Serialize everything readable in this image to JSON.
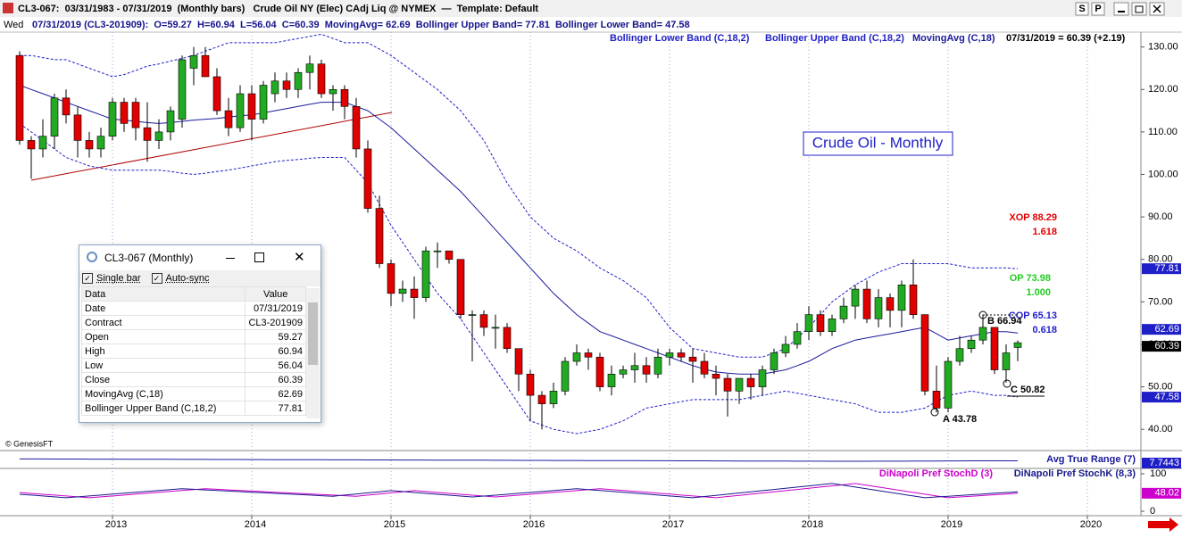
{
  "window": {
    "title": "CL3-067:  03/31/1983 - 07/31/2019  (Monthly bars)   Crude Oil NY (Elec) CAdj Liq @ NYMEX  —  Template: Default",
    "buttons": [
      "S",
      "P"
    ],
    "day": "Wed",
    "status": "07/31/2019 (CL3-201909):  O=59.27  H=60.94  L=56.04  C=60.39  MovingAvg= 62.69  Bollinger Upper Band= 77.81  Bollinger Lower Band= 47.58",
    "copyright": "© GenesisFT"
  },
  "chart_data": [
    {
      "type": "candlestick",
      "title": "Crude Oil - Monthly",
      "last_value": "07/31/2019 = 60.39 (+2.19)",
      "up_color": "#22aa22",
      "down_color": "#e00000",
      "grid": "x",
      "open": [
        128,
        108,
        106,
        109,
        118,
        114,
        108,
        106,
        109,
        117,
        117,
        111,
        108,
        110,
        113,
        125,
        128,
        123,
        115,
        111,
        119,
        113,
        119,
        122,
        120,
        124,
        126,
        119,
        120,
        116,
        106,
        92,
        79,
        72,
        73,
        71,
        82,
        82,
        80,
        67,
        67,
        64,
        64,
        59,
        53,
        48,
        46,
        49,
        56,
        58,
        57,
        50,
        53,
        54,
        55,
        53,
        57,
        58,
        57,
        56,
        53,
        52,
        49,
        52,
        50,
        54,
        58,
        60,
        63,
        67,
        63,
        66,
        69,
        73,
        66,
        71,
        68,
        74,
        67,
        49,
        45,
        56,
        59,
        61,
        64,
        54,
        59.27
      ],
      "high": [
        129,
        109,
        113,
        119,
        120,
        116,
        110,
        111,
        118,
        118,
        118,
        117,
        113,
        116,
        128,
        130,
        130,
        125,
        118,
        121,
        121,
        122,
        124,
        124,
        125,
        128,
        127,
        121,
        121,
        118,
        108,
        95,
        80,
        75,
        76,
        83,
        84,
        82,
        80,
        68,
        68,
        67,
        65,
        59,
        54,
        49,
        51,
        57,
        60,
        59,
        58,
        55,
        55,
        58,
        57,
        59,
        59,
        59,
        59,
        58,
        55,
        53,
        52,
        53,
        55,
        59,
        62,
        65,
        69,
        68,
        67,
        71,
        74,
        75,
        73,
        72,
        75,
        80,
        67,
        55,
        57,
        62,
        62,
        67,
        64,
        60,
        60.94
      ],
      "low": [
        107,
        99,
        104,
        106,
        112,
        104,
        104,
        104,
        108,
        110,
        108,
        103,
        106,
        108,
        111,
        121,
        123,
        114,
        109,
        110,
        108,
        112,
        117,
        118,
        118,
        120,
        118,
        115,
        113,
        104,
        91,
        78,
        69,
        70,
        66,
        70,
        78,
        79,
        66,
        56,
        62,
        59,
        58,
        49,
        42,
        40,
        45,
        48,
        55,
        54,
        49,
        48,
        52,
        51,
        51,
        52,
        55,
        56,
        51,
        52,
        48,
        43,
        46,
        47,
        48,
        53,
        57,
        59,
        61,
        62,
        62,
        65,
        66,
        65,
        64,
        64,
        64,
        66,
        48,
        44,
        44,
        55,
        58,
        60,
        53,
        51,
        56.04
      ],
      "close": [
        108,
        106,
        109,
        118,
        114,
        108,
        106,
        109,
        117,
        112,
        111,
        108,
        110,
        115,
        127,
        128,
        123,
        115,
        111,
        119,
        113,
        121,
        122,
        120,
        124,
        126,
        119,
        120,
        116,
        106,
        92,
        79,
        72,
        73,
        71,
        82,
        82,
        80,
        67,
        67,
        64,
        64,
        59,
        53,
        48,
        46,
        49,
        56,
        58,
        57,
        50,
        53,
        54,
        55,
        53,
        57,
        58,
        57,
        56,
        53,
        52,
        49,
        52,
        50,
        54,
        58,
        60,
        63,
        67,
        63,
        66,
        69,
        73,
        66,
        71,
        68,
        74,
        67,
        49,
        45,
        56,
        59,
        61,
        64,
        54,
        58,
        60.39
      ],
      "series": [
        {
          "name": "Bollinger Lower Band (C,18,2)",
          "color": "#1f1fc8",
          "dashed": true,
          "values": [
            112,
            110,
            108,
            106,
            104,
            103,
            102,
            101.5,
            101,
            101,
            101,
            101,
            101,
            100.7,
            100.3,
            100,
            100.3,
            100.7,
            101,
            101.5,
            102,
            102.5,
            103,
            103.3,
            103.5,
            103.8,
            104,
            104,
            104,
            101,
            98,
            93,
            88,
            84,
            80,
            76,
            72,
            69,
            66,
            62,
            58,
            54,
            50,
            46,
            42,
            41,
            40,
            39.5,
            39,
            39.5,
            40,
            41,
            42,
            43.5,
            45,
            45.5,
            46,
            46.5,
            47,
            47,
            47,
            47,
            47,
            47.5,
            48,
            48.5,
            49,
            48.5,
            48,
            47.5,
            47,
            46.5,
            46,
            45,
            44,
            44,
            44,
            44.5,
            45,
            46.5,
            48,
            48.5,
            49,
            48.5,
            48,
            48,
            47.58
          ]
        },
        {
          "name": "Bollinger Upper Band (C,18,2)",
          "color": "#1f1fc8",
          "dashed": true,
          "values": [
            128,
            128,
            127.5,
            127,
            127,
            126,
            125,
            124,
            123,
            123.5,
            124.5,
            125.5,
            126,
            126.7,
            127.3,
            128,
            129,
            130,
            131,
            131,
            131,
            131,
            131,
            131.5,
            132,
            132.5,
            133,
            132,
            131,
            131,
            131,
            129.5,
            128,
            126,
            124,
            122,
            120,
            117.5,
            115,
            111.5,
            108,
            103,
            98,
            94,
            90,
            87.5,
            85,
            83.5,
            82,
            80,
            78,
            76.5,
            75,
            73,
            71,
            67.5,
            64,
            61.5,
            59,
            58.5,
            58,
            57.5,
            57,
            57,
            57,
            58,
            59,
            61.5,
            64,
            67,
            70,
            72,
            74,
            75.5,
            77,
            78,
            79,
            79,
            79,
            79,
            79,
            78.5,
            78,
            78,
            78,
            78,
            77.81
          ]
        },
        {
          "name": "MovingAvg (C,18)",
          "color": "#1a1a9c",
          "dashed": false,
          "values": [
            121,
            120,
            119,
            118,
            117,
            116,
            115,
            114,
            113,
            112.8,
            112.5,
            112.2,
            112,
            112.2,
            112.5,
            112.8,
            113,
            113.2,
            113.5,
            113.8,
            114,
            114.5,
            115,
            115.5,
            116,
            116.5,
            117,
            117,
            117,
            116,
            115,
            113,
            111,
            108.5,
            106,
            103.5,
            101,
            98.5,
            96,
            93,
            90,
            87,
            84,
            81,
            78,
            75,
            72,
            69.5,
            67,
            65,
            63,
            62,
            61,
            60,
            59,
            58,
            57,
            56,
            55,
            54.2,
            53.5,
            53.2,
            53,
            53,
            53,
            53.5,
            54,
            55,
            56,
            57.5,
            59,
            60,
            61,
            61.5,
            62,
            62.5,
            63,
            63.5,
            64,
            62.5,
            61,
            61.5,
            62,
            62.5,
            63,
            63,
            62.69
          ]
        }
      ],
      "ylim": [
        35,
        133.5
      ],
      "yticks": [
        {
          "value": 130,
          "label": "130.00"
        },
        {
          "value": 120,
          "label": "120.00"
        },
        {
          "value": 110,
          "label": "110.00"
        },
        {
          "value": 100,
          "label": "100.00"
        },
        {
          "value": 90,
          "label": "90.00"
        },
        {
          "value": 80,
          "label": "80.00"
        },
        {
          "value": 70,
          "label": "70.00"
        },
        {
          "value": 60,
          "label": "60.00"
        },
        {
          "value": 50,
          "label": "50.00"
        },
        {
          "value": 40,
          "label": "40.00"
        }
      ],
      "xticks": [
        {
          "value": 8,
          "label": "2013"
        },
        {
          "value": 20,
          "label": "2014"
        },
        {
          "value": 32,
          "label": "2015"
        },
        {
          "value": 44,
          "label": "2016"
        },
        {
          "value": 56,
          "label": "2017"
        },
        {
          "value": 68,
          "label": "2018"
        },
        {
          "value": 80,
          "label": "2019"
        },
        {
          "value": 92,
          "label": "2020"
        }
      ],
      "annotations": [
        {
          "text": "XOP 88.29",
          "color": "#e00000"
        },
        {
          "text": "1.618",
          "color": "#e00000"
        },
        {
          "text": "OP 73.98",
          "color": "#22cc22"
        },
        {
          "text": "1.000",
          "color": "#22cc22"
        },
        {
          "text": "COP 65.13",
          "color": "#1f1fc8"
        },
        {
          "text": "0.618",
          "color": "#1f1fc8"
        },
        {
          "text": "B 66.94",
          "color": "#000000"
        },
        {
          "text": "A 43.78",
          "color": "#000000"
        },
        {
          "text": "C 50.82",
          "color": "#000000"
        }
      ]
    },
    {
      "type": "line",
      "ylim": [
        6,
        10
      ],
      "series": [
        {
          "name": "Avg True Range (7)",
          "color": "#1a1a9c",
          "values": [
            8.3,
            8.3,
            8.29,
            8.28,
            8.27,
            8.26,
            8.25,
            8.24,
            8.23,
            8.22,
            8.21,
            8.2,
            8.19,
            8.18,
            8.17,
            8.16,
            8.15,
            8.14,
            8.13,
            8.12,
            8.11,
            8.1,
            8.09,
            8.08,
            8.07,
            8.06,
            8.05,
            8.04,
            8.03,
            8.02,
            8.01,
            8.0,
            7.99,
            7.98,
            7.97,
            7.96,
            7.95,
            7.94,
            7.93,
            7.92,
            7.91,
            7.9,
            7.89,
            7.88,
            7.87,
            7.86,
            7.85,
            7.84,
            7.83,
            7.82,
            7.81,
            7.8,
            7.79,
            7.78,
            7.77,
            7.76,
            7.75,
            7.74,
            7.73,
            7.72,
            7.71,
            7.7,
            7.69,
            7.68,
            7.67,
            7.66,
            7.65,
            7.64,
            7.63,
            7.62,
            7.61,
            7.6,
            7.6,
            7.61,
            7.62,
            7.63,
            7.64,
            7.65,
            7.66,
            7.68,
            7.7,
            7.71,
            7.72,
            7.73,
            7.74,
            7.74,
            7.7443
          ]
        }
      ]
    },
    {
      "type": "line",
      "ylim": [
        0,
        100
      ],
      "yticks": [
        0,
        100
      ],
      "series": [
        {
          "name": "DiNapoli Pref StochD (3)",
          "color": "#cc00cc",
          "values": [
            50,
            47.7,
            45.3,
            43,
            40.7,
            38.3,
            36,
            38.4,
            40.8,
            43.2,
            45.6,
            48,
            50.4,
            52.8,
            55.2,
            57.6,
            60,
            58.5,
            56.9,
            55.4,
            53.8,
            52.3,
            50.8,
            49.2,
            47.7,
            46.2,
            44.6,
            43.1,
            41.5,
            40,
            43,
            46,
            49,
            52,
            55,
            52.6,
            50.1,
            47.7,
            45.3,
            42.9,
            40.4,
            38,
            40.4,
            42.9,
            45.3,
            47.8,
            50.2,
            52.7,
            55.1,
            57.6,
            60,
            57.6,
            55.2,
            52.8,
            50.4,
            48,
            45.6,
            43.2,
            40.8,
            38.4,
            36,
            39.2,
            42.3,
            45.5,
            48.7,
            51.8,
            55,
            58.2,
            61.3,
            64.5,
            67.7,
            70.8,
            74,
            69.3,
            64.5,
            59.8,
            55,
            50.3,
            45.5,
            40.8,
            36,
            38,
            40,
            42,
            44,
            46,
            48.02
          ]
        },
        {
          "name": "DiNapoli Pref StochK (8,3)",
          "color": "#1a1a8c",
          "values": [
            45.3,
            43,
            40.7,
            38.3,
            36,
            38.4,
            40.8,
            43.2,
            45.6,
            48,
            50.4,
            52.8,
            55.2,
            57.6,
            60,
            58.5,
            56.9,
            55.4,
            53.8,
            52.3,
            50.8,
            49.2,
            47.7,
            46.2,
            44.6,
            43.1,
            41.5,
            40,
            43,
            46,
            49,
            52,
            55,
            52.6,
            50.1,
            47.7,
            45.3,
            42.9,
            40.4,
            38,
            40.4,
            42.9,
            45.3,
            47.8,
            50.2,
            52.7,
            55.1,
            57.6,
            60,
            57.6,
            55.2,
            52.8,
            50.4,
            48,
            45.6,
            43.2,
            40.8,
            38.4,
            36,
            39.2,
            42.3,
            45.5,
            48.7,
            51.8,
            55,
            58.2,
            61.3,
            64.5,
            67.7,
            70.8,
            74,
            69.3,
            64.5,
            59.8,
            55,
            50.3,
            45.5,
            40.8,
            36,
            38,
            40,
            42,
            44,
            46,
            48.02,
            50,
            52
          ]
        }
      ]
    }
  ],
  "dialog": {
    "title": "CL3-067 (Monthly)",
    "checkboxes": [
      "Single bar",
      "Auto-sync"
    ],
    "columns": [
      "Data",
      "Value"
    ],
    "rows": [
      [
        "Date",
        "07/31/2019"
      ],
      [
        "Contract",
        "CL3-201909"
      ],
      [
        "Open",
        "59.27"
      ],
      [
        "High",
        "60.94"
      ],
      [
        "Low",
        "56.04"
      ],
      [
        "Close",
        "60.39"
      ],
      [
        "MovingAvg (C,18)",
        "62.69"
      ],
      [
        "Bollinger Upper Band (C,18,2)",
        "77.81"
      ]
    ]
  }
}
